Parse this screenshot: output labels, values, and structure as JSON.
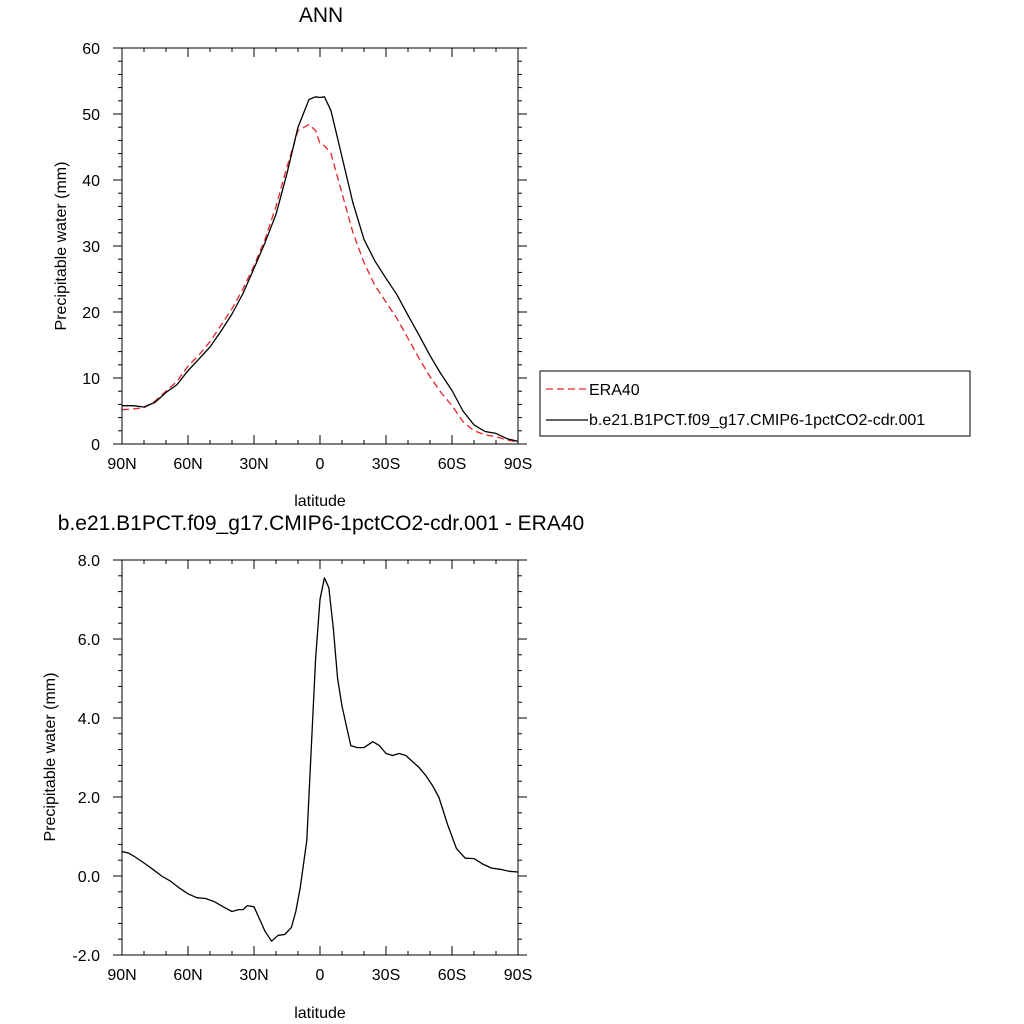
{
  "chart_data": [
    {
      "type": "line",
      "title": "ANN",
      "xlabel": "latitude",
      "ylabel": "Precipitable water (mm)",
      "x_unit": "degrees latitude (positive = north)",
      "xlim": [
        90,
        -90
      ],
      "ylim": [
        0,
        60
      ],
      "x_ticks": [
        {
          "value": 90,
          "label": "90N"
        },
        {
          "value": 60,
          "label": "60N"
        },
        {
          "value": 30,
          "label": "30N"
        },
        {
          "value": 0,
          "label": "0"
        },
        {
          "value": -30,
          "label": "30S"
        },
        {
          "value": -60,
          "label": "60S"
        },
        {
          "value": -90,
          "label": "90S"
        }
      ],
      "y_ticks": [
        {
          "value": 0,
          "label": "0"
        },
        {
          "value": 10,
          "label": "10"
        },
        {
          "value": 20,
          "label": "20"
        },
        {
          "value": 30,
          "label": "30"
        },
        {
          "value": 40,
          "label": "40"
        },
        {
          "value": 50,
          "label": "50"
        },
        {
          "value": 60,
          "label": "60"
        }
      ],
      "grid": false,
      "legend_position": "right",
      "series": [
        {
          "name": "ERA40",
          "color": "#e8242a",
          "dash": "dashed",
          "x": [
            90,
            85,
            80,
            75,
            70,
            65,
            60,
            55,
            50,
            45,
            40,
            35,
            30,
            25,
            20,
            15,
            10,
            5,
            2,
            0,
            -2,
            -5,
            -10,
            -15,
            -20,
            -25,
            -30,
            -35,
            -40,
            -45,
            -50,
            -55,
            -60,
            -65,
            -70,
            -75,
            -80,
            -85,
            -90
          ],
          "y": [
            5.2,
            5.3,
            5.5,
            6.5,
            8.0,
            9.5,
            11.8,
            13.5,
            15.5,
            18,
            20.5,
            23.5,
            27,
            31,
            36,
            42,
            47.5,
            48.4,
            47.5,
            45.5,
            45.2,
            44,
            38,
            32,
            27.5,
            24,
            21.5,
            19,
            16,
            13,
            10.2,
            7.8,
            5.8,
            3.4,
            2.0,
            1.4,
            1.1,
            0.6,
            0.3
          ]
        },
        {
          "name": "b.e21.B1PCT.f09_g17.CMIP6-1pctCO2-cdr.001",
          "color": "#000000",
          "dash": "solid",
          "x": [
            90,
            85,
            80,
            75,
            70,
            65,
            60,
            55,
            50,
            45,
            40,
            35,
            30,
            25,
            20,
            15,
            10,
            5,
            2,
            0,
            -2,
            -5,
            -10,
            -15,
            -20,
            -25,
            -30,
            -35,
            -40,
            -45,
            -50,
            -55,
            -60,
            -65,
            -70,
            -75,
            -80,
            -85,
            -90
          ],
          "y": [
            5.8,
            5.8,
            5.6,
            6.3,
            7.8,
            9.0,
            11.1,
            12.9,
            14.7,
            17.1,
            19.7,
            22.8,
            26.6,
            30.5,
            34.8,
            41.0,
            48.0,
            52.2,
            52.6,
            52.5,
            52.6,
            50.5,
            43.5,
            36.5,
            31.0,
            27.7,
            25.1,
            22.6,
            19.5,
            16.5,
            13.4,
            10.6,
            8.1,
            5.0,
            2.9,
            1.9,
            1.6,
            0.8,
            0.4
          ]
        }
      ]
    },
    {
      "type": "line",
      "title": "b.e21.B1PCT.f09_g17.CMIP6-1pctCO2-cdr.001 - ERA40",
      "xlabel": "latitude",
      "ylabel": "Precipitable water (mm)",
      "x_unit": "degrees latitude (positive = north)",
      "xlim": [
        90,
        -90
      ],
      "ylim": [
        -2.0,
        8.0
      ],
      "x_ticks": [
        {
          "value": 90,
          "label": "90N"
        },
        {
          "value": 60,
          "label": "60N"
        },
        {
          "value": 30,
          "label": "30N"
        },
        {
          "value": 0,
          "label": "0"
        },
        {
          "value": -30,
          "label": "30S"
        },
        {
          "value": -60,
          "label": "60S"
        },
        {
          "value": -90,
          "label": "90S"
        }
      ],
      "y_ticks": [
        {
          "value": -2.0,
          "label": "-2.0"
        },
        {
          "value": 0.0,
          "label": "0.0"
        },
        {
          "value": 2.0,
          "label": "2.0"
        },
        {
          "value": 4.0,
          "label": "4.0"
        },
        {
          "value": 6.0,
          "label": "6.0"
        },
        {
          "value": 8.0,
          "label": "8.0"
        }
      ],
      "grid": false,
      "series": [
        {
          "color": "#000000",
          "dash": "solid",
          "x": [
            90,
            87,
            84,
            80,
            76,
            72,
            68,
            64,
            60,
            56,
            52,
            48,
            44,
            40,
            37,
            35,
            33,
            30,
            27,
            25,
            22,
            19,
            16,
            13,
            11,
            9,
            6,
            4,
            2,
            0,
            -2,
            -4,
            -6,
            -8,
            -10,
            -12,
            -14,
            -17,
            -20,
            -24,
            -27,
            -30,
            -33,
            -36,
            -39,
            -42,
            -45,
            -48,
            -51,
            -54,
            -58,
            -62,
            -66,
            -70,
            -74,
            -78,
            -82,
            -86,
            -90
          ],
          "y": [
            0.62,
            0.58,
            0.48,
            0.33,
            0.17,
            0.0,
            -0.13,
            -0.3,
            -0.45,
            -0.55,
            -0.57,
            -0.65,
            -0.78,
            -0.9,
            -0.85,
            -0.85,
            -0.75,
            -0.78,
            -1.15,
            -1.4,
            -1.65,
            -1.5,
            -1.48,
            -1.3,
            -0.9,
            -0.3,
            0.9,
            3.2,
            5.5,
            7.0,
            7.55,
            7.3,
            6.3,
            5.0,
            4.3,
            3.8,
            3.3,
            3.25,
            3.25,
            3.4,
            3.3,
            3.1,
            3.05,
            3.1,
            3.05,
            2.9,
            2.75,
            2.55,
            2.3,
            2.0,
            1.3,
            0.7,
            0.45,
            0.44,
            0.3,
            0.2,
            0.17,
            0.12,
            0.1
          ]
        }
      ]
    }
  ]
}
